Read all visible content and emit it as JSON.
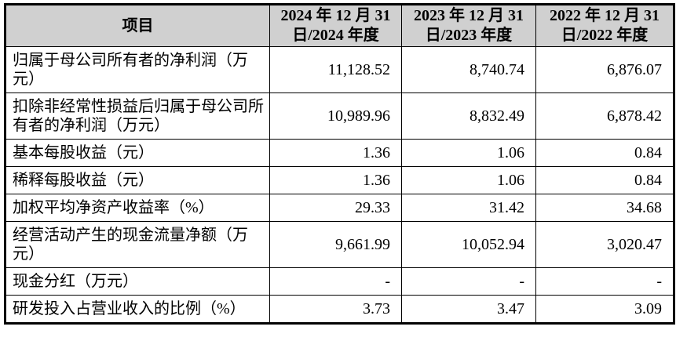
{
  "table": {
    "header": {
      "item": "项目",
      "col_2024": "2024 年 12 月 31 日/2024 年度",
      "col_2023": "2023 年 12 月 31 日/2023 年度",
      "col_2022": "2022 年 12 月 31 日/2022 年度"
    },
    "rows": [
      {
        "label": "归属于母公司所有者的净利润（万元）",
        "v2024": "11,128.52",
        "v2023": "8,740.74",
        "v2022": "6,876.07"
      },
      {
        "label": "扣除非经常性损益后归属于母公司所有者的净利润（万元）",
        "v2024": "10,989.96",
        "v2023": "8,832.49",
        "v2022": "6,878.42"
      },
      {
        "label": "基本每股收益（元）",
        "v2024": "1.36",
        "v2023": "1.06",
        "v2022": "0.84"
      },
      {
        "label": "稀释每股收益（元）",
        "v2024": "1.36",
        "v2023": "1.06",
        "v2022": "0.84"
      },
      {
        "label": "加权平均净资产收益率（%）",
        "v2024": "29.33",
        "v2023": "31.42",
        "v2022": "34.68"
      },
      {
        "label": "经营活动产生的现金流量净额（万元）",
        "v2024": "9,661.99",
        "v2023": "10,052.94",
        "v2022": "3,020.47"
      },
      {
        "label": "现金分红（万元）",
        "v2024": "-",
        "v2023": "-",
        "v2022": "-"
      },
      {
        "label": "研发投入占营业收入的比例（%）",
        "v2024": "3.73",
        "v2023": "3.47",
        "v2022": "3.09"
      }
    ]
  },
  "colors": {
    "header_bg": "#d0d0d0",
    "border": "#000000",
    "text": "#000000",
    "page_bg": "#ffffff"
  }
}
